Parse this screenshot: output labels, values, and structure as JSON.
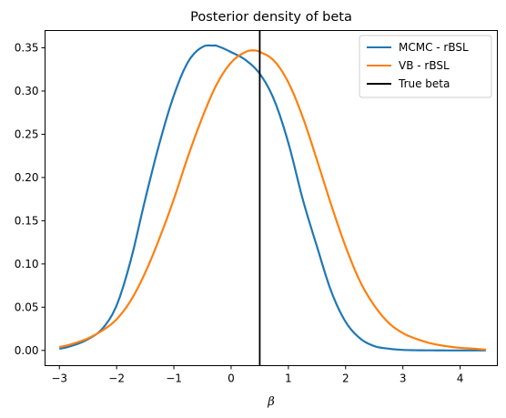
{
  "chart_data": {
    "type": "line",
    "title": "Posterior density of beta",
    "xlabel": "β",
    "ylabel": "",
    "xlim": [
      -3.25,
      4.65
    ],
    "ylim": [
      -0.0176,
      0.37
    ],
    "xticks": [
      -3,
      -2,
      -1,
      0,
      1,
      2,
      3,
      4
    ],
    "yticks": [
      0.0,
      0.05,
      0.1,
      0.15,
      0.2,
      0.25,
      0.3,
      0.35
    ],
    "grid": false,
    "legend_position": "top-right",
    "series": [
      {
        "name": "MCMC - rBSL",
        "color": "#1f77b4",
        "x": [
          -3.0,
          -2.75,
          -2.5,
          -2.25,
          -2.0,
          -1.75,
          -1.5,
          -1.25,
          -1.0,
          -0.75,
          -0.5,
          -0.3,
          -0.25,
          0.0,
          0.25,
          0.5,
          0.75,
          1.0,
          1.25,
          1.5,
          1.75,
          2.0,
          2.25,
          2.5,
          2.75,
          3.0,
          3.25,
          3.5,
          3.75,
          4.0,
          4.25,
          4.45
        ],
        "y": [
          0.002,
          0.006,
          0.013,
          0.025,
          0.052,
          0.105,
          0.175,
          0.24,
          0.295,
          0.334,
          0.351,
          0.3525,
          0.352,
          0.345,
          0.336,
          0.32,
          0.29,
          0.24,
          0.175,
          0.12,
          0.068,
          0.033,
          0.014,
          0.005,
          0.002,
          0.0006,
          0.0002,
          0.0001,
          0.0,
          0.0,
          0.0,
          0.0
        ]
      },
      {
        "name": "VB - rBSL",
        "color": "#ff7f0e",
        "x": [
          -3.0,
          -2.75,
          -2.5,
          -2.25,
          -2.0,
          -1.75,
          -1.5,
          -1.25,
          -1.0,
          -0.75,
          -0.5,
          -0.25,
          0.0,
          0.25,
          0.4,
          0.5,
          0.75,
          1.0,
          1.25,
          1.5,
          1.75,
          2.0,
          2.25,
          2.5,
          2.75,
          3.0,
          3.25,
          3.5,
          3.75,
          4.0,
          4.25,
          4.45
        ],
        "y": [
          0.004,
          0.008,
          0.014,
          0.023,
          0.036,
          0.058,
          0.09,
          0.13,
          0.175,
          0.225,
          0.27,
          0.308,
          0.333,
          0.345,
          0.347,
          0.345,
          0.335,
          0.31,
          0.27,
          0.22,
          0.168,
          0.12,
          0.08,
          0.052,
          0.032,
          0.02,
          0.013,
          0.008,
          0.005,
          0.003,
          0.002,
          0.001
        ]
      }
    ],
    "vline": {
      "name": "True beta",
      "x": 0.5,
      "color": "#000000"
    }
  }
}
